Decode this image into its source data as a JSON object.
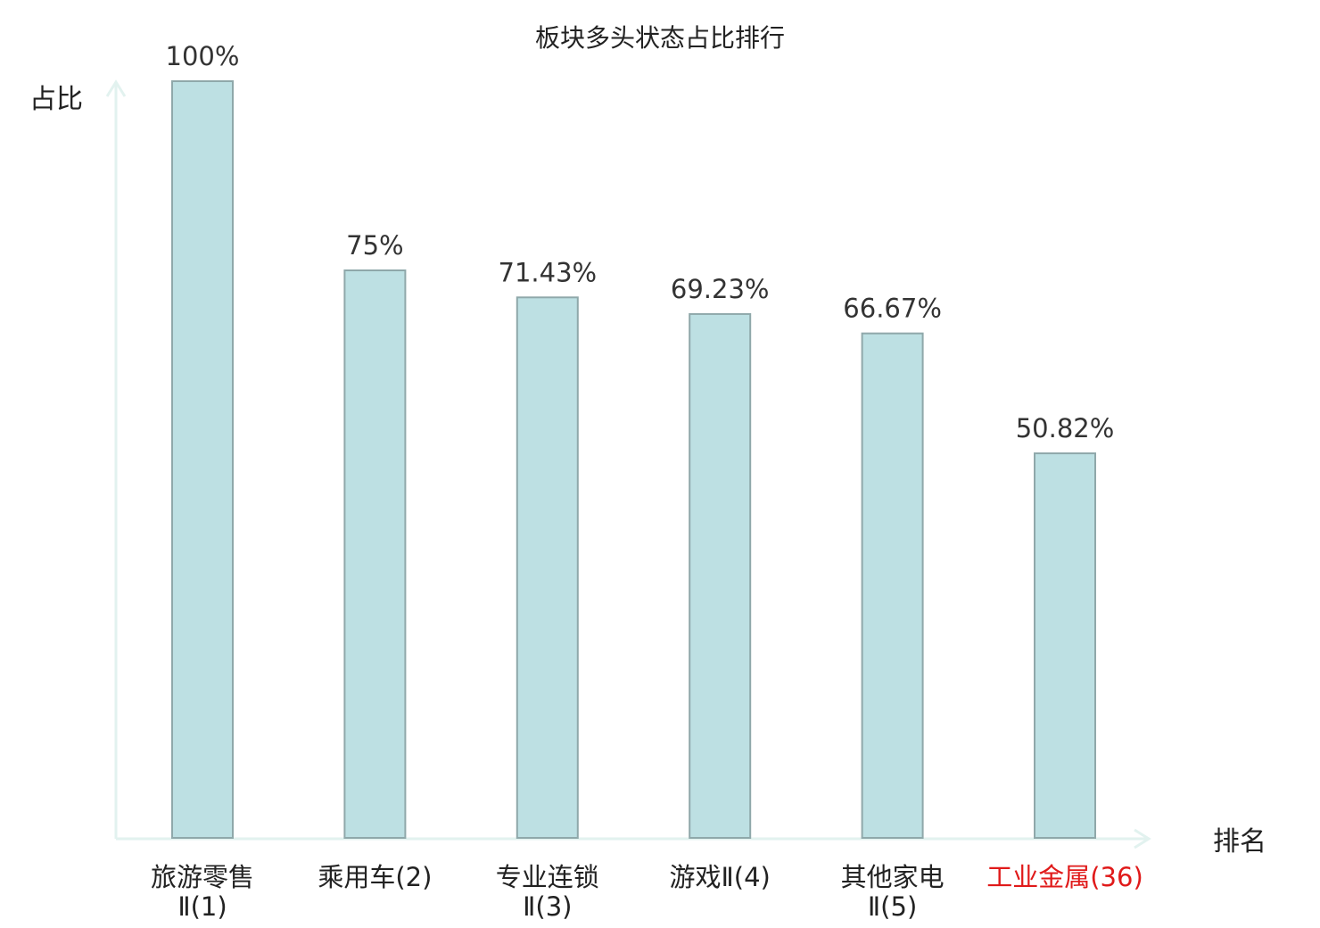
{
  "chart_data": {
    "type": "bar",
    "title": "板块多头状态占比排行",
    "ylabel": "占比",
    "xlabel": "排名",
    "ylim": [
      0,
      100
    ],
    "grid": false,
    "bar_color": "#bde0e3",
    "bar_edge_color": "#8fa8aa",
    "axis_color": "#e2f2ef",
    "highlight_color": "#e01a1a",
    "categories": [
      {
        "lines": [
          "旅游零售",
          "Ⅱ(1)"
        ],
        "highlight": false
      },
      {
        "lines": [
          "乘用车(2)"
        ],
        "highlight": false
      },
      {
        "lines": [
          "专业连锁",
          "Ⅱ(3)"
        ],
        "highlight": false
      },
      {
        "lines": [
          "游戏Ⅱ(4)"
        ],
        "highlight": false
      },
      {
        "lines": [
          "其他家电",
          "Ⅱ(5)"
        ],
        "highlight": false
      },
      {
        "lines": [
          "工业金属(36)"
        ],
        "highlight": true
      }
    ],
    "values": [
      100,
      75,
      71.43,
      69.23,
      66.67,
      50.82
    ],
    "value_labels": [
      "100%",
      "75%",
      "71.43%",
      "69.23%",
      "66.67%",
      "50.82%"
    ]
  }
}
